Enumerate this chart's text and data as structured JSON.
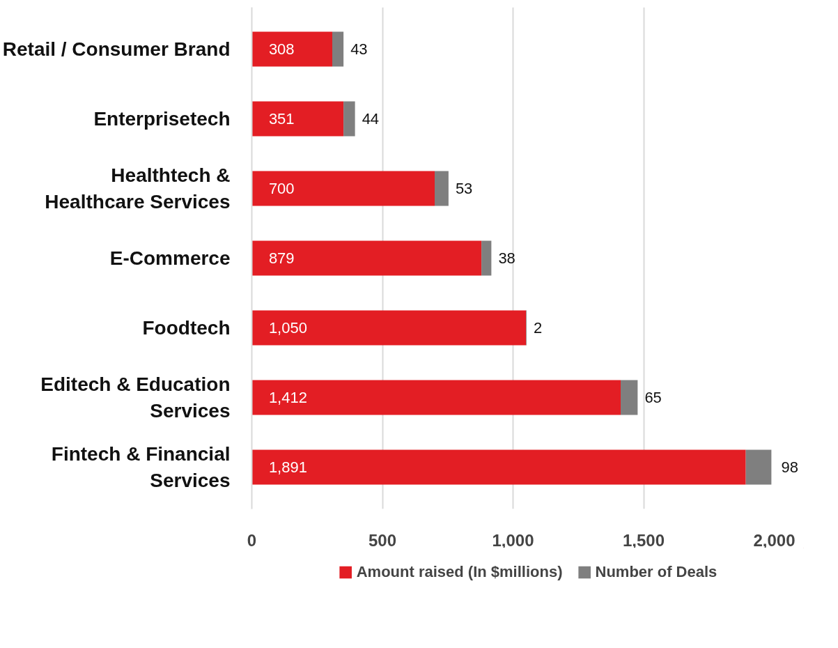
{
  "chart_data": {
    "type": "bar",
    "orientation": "horizontal",
    "stacked": true,
    "categories": [
      "Retail / Consumer Brand",
      "Enterprisetech",
      "Healthtech &\nHealthcare Services",
      "E-Commerce",
      "Foodtech",
      "Editech & Education\nServices",
      "Fintech & Financial\nServices"
    ],
    "series": [
      {
        "name": "Amount raised (In $millions)",
        "color": "#e31e24",
        "values": [
          308,
          351,
          700,
          879,
          1050,
          1412,
          1891
        ],
        "value_labels": [
          "308",
          "351",
          "700",
          "879",
          "1,050",
          "1,412",
          "1,891"
        ]
      },
      {
        "name": "Number of Deals",
        "color": "#7f7f7f",
        "values": [
          43,
          44,
          53,
          38,
          2,
          65,
          98
        ],
        "value_labels": [
          "43",
          "44",
          "53",
          "38",
          "2",
          "65",
          "98"
        ]
      }
    ],
    "xlim": [
      0,
      2000
    ],
    "xticks": [
      0,
      500,
      {
        "value": 1000,
        "label": "1,000"
      },
      {
        "value": 1500,
        "label": "1,500"
      },
      {
        "value": 2000,
        "label": "2,000"
      }
    ],
    "grid": "x",
    "legend": "bottom"
  }
}
